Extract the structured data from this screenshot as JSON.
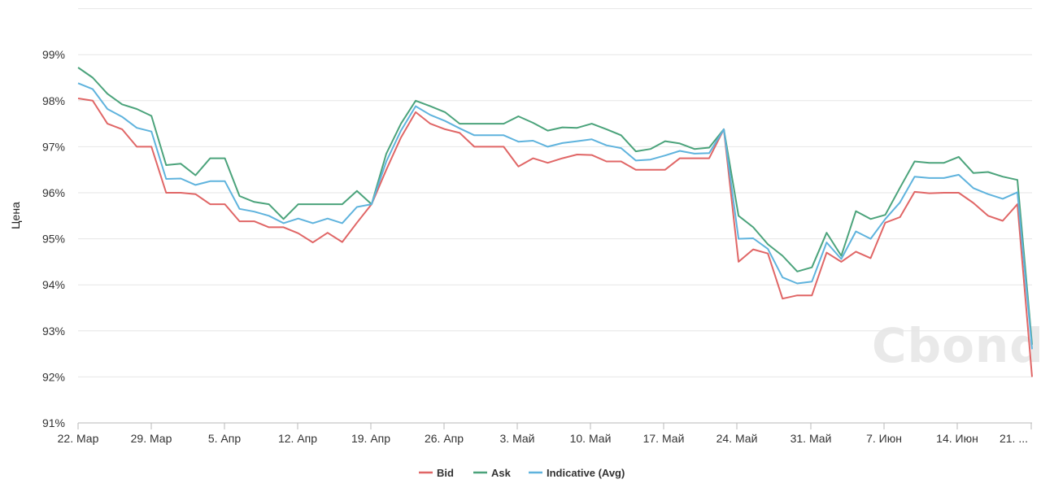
{
  "chart_data": {
    "type": "line",
    "title": "",
    "xlabel": "",
    "ylabel": "Цена",
    "ylim": [
      91,
      100
    ],
    "yticks": [
      "91%",
      "92%",
      "93%",
      "94%",
      "95%",
      "96%",
      "97%",
      "98%",
      "99%"
    ],
    "xticks": [
      "22. Мар",
      "29. Мар",
      "5. Апр",
      "12. Апр",
      "19. Апр",
      "26. Апр",
      "3. Май",
      "10. Май",
      "17. Май",
      "24. Май",
      "31. Май",
      "7. Июн",
      "14. Июн",
      "21. ..."
    ],
    "legend_position": "bottom-center",
    "watermark": "Cbonds",
    "grid": true,
    "series": [
      {
        "name": "Bid",
        "color": "#e06666",
        "values": [
          98.05,
          98.0,
          97.5,
          97.38,
          97.0,
          97.0,
          96.0,
          96.0,
          95.97,
          95.75,
          95.75,
          95.38,
          95.38,
          95.25,
          95.25,
          95.12,
          94.92,
          95.13,
          94.93,
          95.35,
          95.75,
          96.5,
          97.2,
          97.75,
          97.5,
          97.38,
          97.3,
          97.0,
          97.0,
          97.0,
          96.57,
          96.75,
          96.65,
          96.75,
          96.83,
          96.82,
          96.68,
          96.68,
          96.5,
          96.5,
          96.5,
          96.75,
          96.75,
          96.75,
          97.38,
          94.5,
          94.77,
          94.68,
          93.7,
          93.77,
          93.77,
          94.7,
          94.5,
          94.72,
          94.58,
          95.35,
          95.47,
          96.02,
          95.99,
          96.0,
          96.0,
          95.78,
          95.5,
          95.39,
          95.75,
          92.0
        ]
      },
      {
        "name": "Ask",
        "color": "#4ba37b",
        "values": [
          98.72,
          98.5,
          98.15,
          97.92,
          97.82,
          97.67,
          96.6,
          96.63,
          96.38,
          96.75,
          96.75,
          95.93,
          95.8,
          95.75,
          95.43,
          95.75,
          95.75,
          95.75,
          95.75,
          96.04,
          95.75,
          96.85,
          97.5,
          98.0,
          97.88,
          97.75,
          97.5,
          97.5,
          97.5,
          97.5,
          97.66,
          97.52,
          97.35,
          97.42,
          97.41,
          97.5,
          97.38,
          97.25,
          96.9,
          96.95,
          97.12,
          97.07,
          96.95,
          96.98,
          97.38,
          95.5,
          95.25,
          94.88,
          94.63,
          94.29,
          94.38,
          95.13,
          94.63,
          95.6,
          95.43,
          95.52,
          96.11,
          96.68,
          96.65,
          96.65,
          96.78,
          96.43,
          96.45,
          96.35,
          96.28,
          92.7
        ]
      },
      {
        "name": "Indicative (Avg)",
        "color": "#5fb3dd",
        "values": [
          98.38,
          98.25,
          97.82,
          97.65,
          97.41,
          97.33,
          96.3,
          96.31,
          96.17,
          96.25,
          96.25,
          95.65,
          95.59,
          95.5,
          95.34,
          95.44,
          95.34,
          95.44,
          95.34,
          95.69,
          95.75,
          96.68,
          97.35,
          97.88,
          97.69,
          97.56,
          97.4,
          97.25,
          97.25,
          97.25,
          97.11,
          97.13,
          97.0,
          97.08,
          97.12,
          97.16,
          97.03,
          96.97,
          96.7,
          96.72,
          96.81,
          96.91,
          96.85,
          96.86,
          97.38,
          95.0,
          95.01,
          94.78,
          94.16,
          94.03,
          94.07,
          94.92,
          94.56,
          95.16,
          95.0,
          95.43,
          95.79,
          96.35,
          96.32,
          96.32,
          96.39,
          96.1,
          95.97,
          95.87,
          96.01,
          92.6
        ]
      }
    ]
  }
}
